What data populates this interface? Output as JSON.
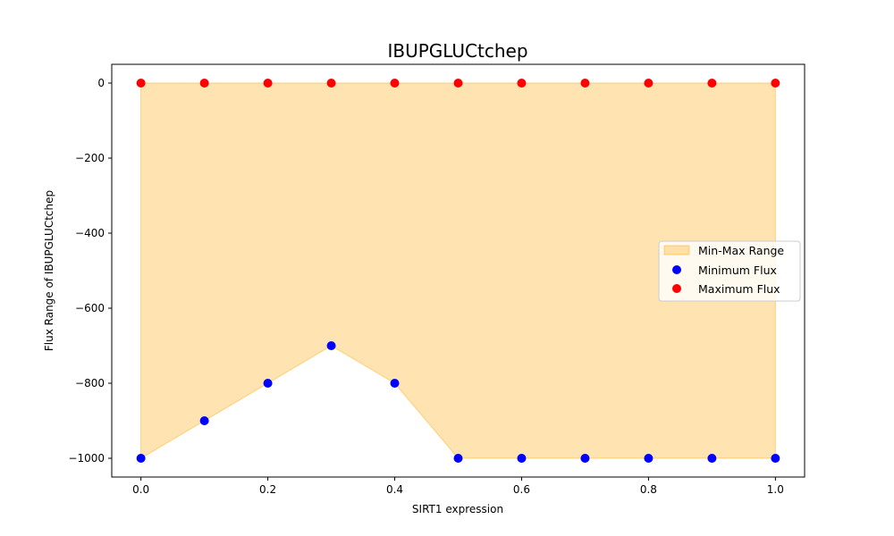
{
  "chart_data": {
    "type": "scatter",
    "title": "IBUPGLUCtchep",
    "xlabel": "SIRT1 expression",
    "ylabel": "Flux Range of IBUPGLUCtchep",
    "xlim": [
      -0.046,
      1.046
    ],
    "ylim": [
      -1050,
      50
    ],
    "x": [
      0.0,
      0.1,
      0.2,
      0.3,
      0.4,
      0.5,
      0.6,
      0.7,
      0.8,
      0.9,
      1.0
    ],
    "series": [
      {
        "name": "Minimum Flux",
        "color": "#0000ff",
        "values": [
          -1000,
          -900,
          -800,
          -700,
          -800,
          -1000,
          -1000,
          -1000,
          -1000,
          -1000,
          -1000
        ]
      },
      {
        "name": "Maximum Flux",
        "color": "#ff0000",
        "values": [
          0,
          0,
          0,
          0,
          0,
          0,
          0,
          0,
          0,
          0,
          0
        ]
      }
    ],
    "fill": {
      "name": "Min-Max Range",
      "color": "#ffa500",
      "opacity": 0.3
    },
    "xticks": [
      {
        "value": 0.0,
        "label": "0.0"
      },
      {
        "value": 0.2,
        "label": "0.2"
      },
      {
        "value": 0.4,
        "label": "0.4"
      },
      {
        "value": 0.6,
        "label": "0.6"
      },
      {
        "value": 0.8,
        "label": "0.8"
      },
      {
        "value": 1.0,
        "label": "1.0"
      }
    ],
    "yticks": [
      {
        "value": 0,
        "label": "0"
      },
      {
        "value": -200,
        "label": "−200"
      },
      {
        "value": -400,
        "label": "−400"
      },
      {
        "value": -600,
        "label": "−600"
      },
      {
        "value": -800,
        "label": "−800"
      },
      {
        "value": -1000,
        "label": "−1000"
      }
    ],
    "grid": false,
    "legend_position": "center-right",
    "legend": [
      "Min-Max Range",
      "Minimum Flux",
      "Maximum Flux"
    ]
  }
}
